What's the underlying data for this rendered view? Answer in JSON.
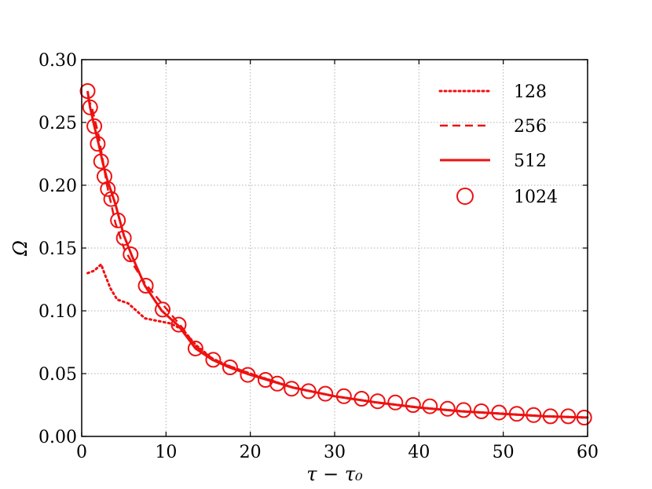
{
  "chart_data": {
    "type": "line",
    "title": "",
    "xlabel": "τ − τ₀",
    "ylabel": "Ω",
    "xlim": [
      0,
      60
    ],
    "ylim": [
      0.0,
      0.3
    ],
    "x_ticks": [
      "0",
      "10",
      "20",
      "30",
      "40",
      "50",
      "60"
    ],
    "y_ticks": [
      "0.00",
      "0.05",
      "0.10",
      "0.15",
      "0.20",
      "0.25",
      "0.30"
    ],
    "grid": true,
    "legend_position": "top-right",
    "color": "#ee1111",
    "series": [
      {
        "name": "128",
        "style": "dotted",
        "x": [
          0.7,
          1.5,
          2.3,
          2.8,
          3.4,
          4.2,
          5.5,
          6.5,
          7.5,
          9.0,
          10.5,
          12.0,
          13.5,
          15.5,
          17.5,
          20,
          25,
          30,
          35,
          40,
          45,
          50,
          55,
          60
        ],
        "y": [
          0.13,
          0.132,
          0.137,
          0.128,
          0.118,
          0.109,
          0.106,
          0.1,
          0.094,
          0.092,
          0.09,
          0.085,
          0.073,
          0.062,
          0.056,
          0.05,
          0.039,
          0.032,
          0.027,
          0.023,
          0.02,
          0.018,
          0.016,
          0.015
        ]
      },
      {
        "name": "256",
        "style": "dashed",
        "x": [
          0.7,
          1.2,
          2.0,
          3.0,
          4.0,
          5.0,
          6.0,
          7.5,
          9.0,
          10.5,
          12.0,
          13.5,
          15.5,
          17.5,
          20,
          25,
          30,
          35,
          40,
          45,
          50,
          55,
          60
        ],
        "y": [
          0.27,
          0.262,
          0.24,
          0.2,
          0.17,
          0.15,
          0.138,
          0.122,
          0.11,
          0.098,
          0.086,
          0.072,
          0.062,
          0.056,
          0.05,
          0.039,
          0.032,
          0.027,
          0.023,
          0.02,
          0.018,
          0.016,
          0.015
        ]
      },
      {
        "name": "512",
        "style": "solid",
        "x": [
          0.7,
          1.0,
          1.5,
          2.0,
          2.5,
          3.0,
          3.5,
          4.0,
          5.0,
          6.0,
          7.5,
          9.5,
          11.5,
          13.5,
          15.5,
          17.5,
          20,
          25,
          30,
          35,
          40,
          45,
          50,
          55,
          60
        ],
        "y": [
          0.275,
          0.262,
          0.247,
          0.233,
          0.218,
          0.205,
          0.195,
          0.185,
          0.16,
          0.143,
          0.12,
          0.1,
          0.088,
          0.07,
          0.061,
          0.055,
          0.049,
          0.039,
          0.032,
          0.027,
          0.023,
          0.02,
          0.018,
          0.016,
          0.015
        ]
      },
      {
        "name": "1024",
        "style": "circle",
        "x": [
          0.7,
          1.0,
          1.5,
          1.9,
          2.3,
          2.7,
          3.1,
          3.5,
          4.3,
          5.0,
          5.8,
          7.6,
          9.6,
          11.5,
          13.5,
          15.6,
          17.6,
          19.7,
          21.8,
          23.2,
          24.9,
          26.9,
          28.9,
          31.1,
          33.2,
          35.1,
          37.2,
          39.3,
          41.3,
          43.4,
          45.3,
          47.4,
          49.5,
          51.6,
          53.6,
          55.6,
          57.7,
          59.6
        ],
        "y": [
          0.275,
          0.262,
          0.247,
          0.233,
          0.219,
          0.207,
          0.197,
          0.189,
          0.172,
          0.158,
          0.145,
          0.12,
          0.101,
          0.089,
          0.07,
          0.061,
          0.055,
          0.049,
          0.045,
          0.042,
          0.038,
          0.036,
          0.034,
          0.032,
          0.03,
          0.028,
          0.027,
          0.025,
          0.024,
          0.022,
          0.021,
          0.02,
          0.019,
          0.018,
          0.017,
          0.016,
          0.016,
          0.015
        ]
      }
    ]
  }
}
